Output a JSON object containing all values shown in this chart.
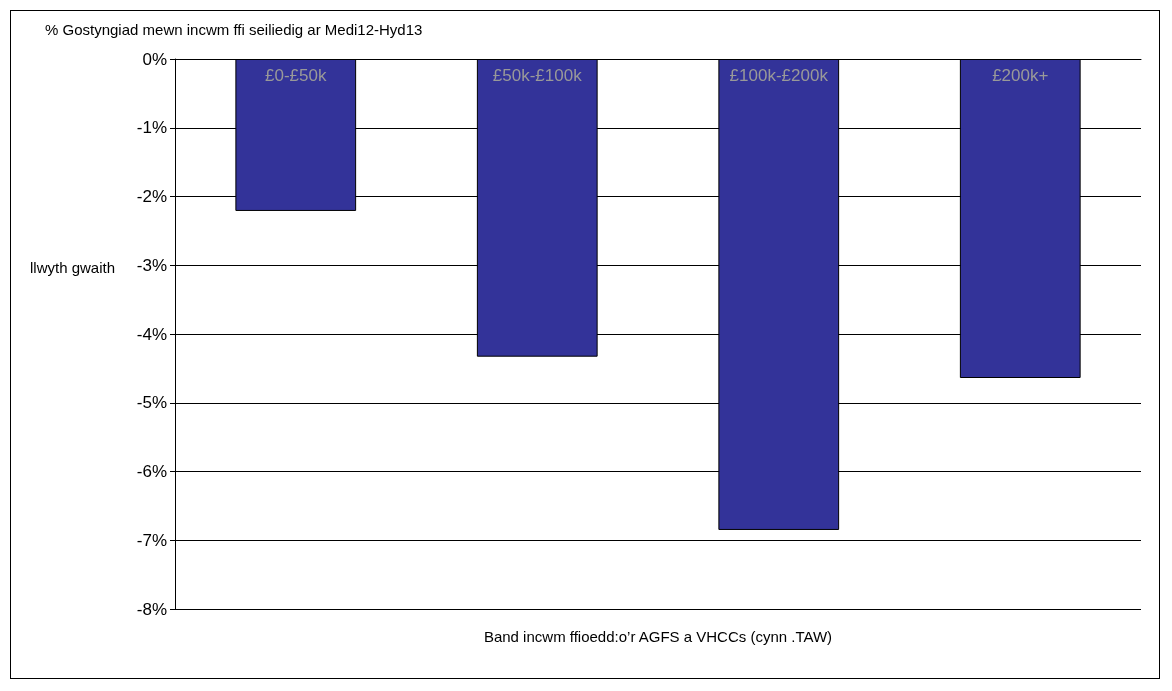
{
  "chart_data": {
    "type": "bar",
    "ylabel": "% Gostyngiad mewn incwm ffi seiliedig ar Medi12-Hyd13",
    "xlabel": "Band incwm ffioedd:o’r AGFS a VHCCs (cynn .TAW)",
    "annotations": [
      "llwyth gwaith"
    ],
    "categories": [
      "£0-£50k",
      "£50k-£100k",
      "£100k-£200k",
      "£200k+"
    ],
    "values": [
      -2.21,
      -4.33,
      -6.85,
      -4.64
    ],
    "color": "#333399",
    "ylim": [
      -8,
      0
    ],
    "yticks": [
      {
        "value": 0,
        "label": "0%"
      },
      {
        "value": -1,
        "label": "-1%"
      },
      {
        "value": -2,
        "label": "-2%"
      },
      {
        "value": -3,
        "label": "-3%"
      },
      {
        "value": -4,
        "label": "-4%"
      },
      {
        "value": -5,
        "label": "-5%"
      },
      {
        "value": -6,
        "label": "-6%"
      },
      {
        "value": -7,
        "label": "-7%"
      },
      {
        "value": -8,
        "label": "-8%"
      }
    ],
    "grid": "y"
  }
}
